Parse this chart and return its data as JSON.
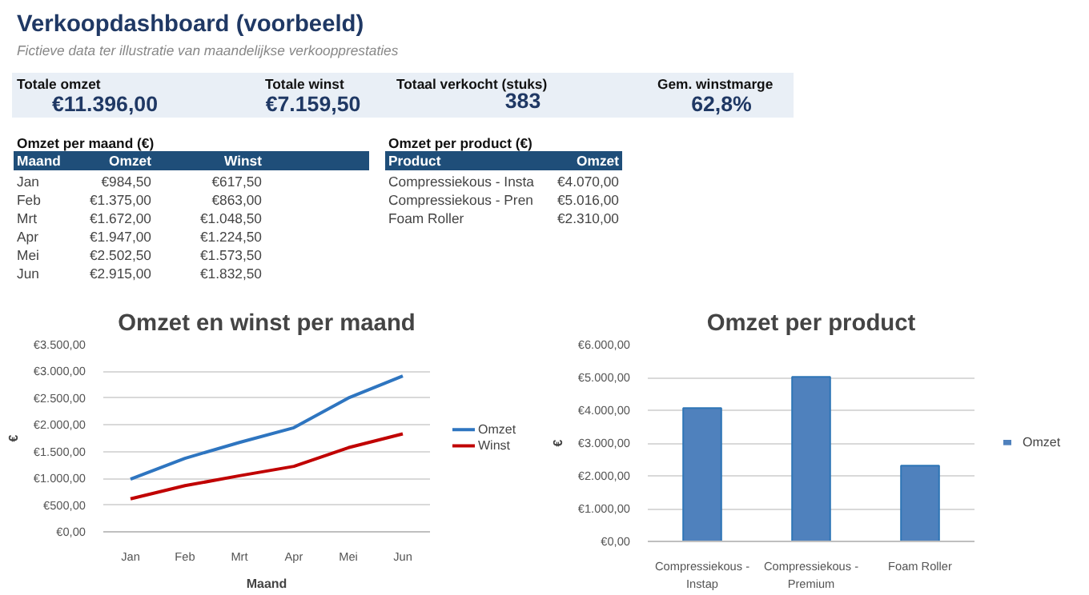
{
  "chart_data": [
    {
      "type": "other",
      "title": "Verkoopdashboard (voorbeeld)",
      "subtitle": "Fictieve data ter illustratie van maandelijkse verkoopprestaties",
      "categories": [
        "Totale omzet",
        "Totale winst",
        "Totaal verkocht (stuks)",
        "Gem. winstmarge"
      ],
      "annotations": [
        "€11.396,00",
        "€7.159,50",
        "383",
        "62,8%"
      ]
    },
    {
      "type": "other",
      "title": "Omzet per maand (€)",
      "categories": [
        "Maand",
        "Omzet",
        "Winst"
      ],
      "annotations": [
        "Jan",
        "€984,50",
        "€617,50",
        "Feb",
        "€1.375,00",
        "€863,00",
        "Mrt",
        "€1.672,00",
        "€1.048,50",
        "Apr",
        "€1.947,00",
        "€1.224,50",
        "Mei",
        "€2.502,50",
        "€1.573,50",
        "Jun",
        "€2.915,00",
        "€1.832,50"
      ]
    },
    {
      "type": "other",
      "title": "Omzet per product (€)",
      "categories": [
        "Product",
        "Omzet"
      ],
      "annotations": [
        "Compressiekous - Insta",
        "€4.070,00",
        "Compressiekous - Pren",
        "€5.016,00",
        "Foam Roller",
        "€2.310,00"
      ]
    },
    {
      "type": "line",
      "title": "Omzet en winst per maand",
      "xlabel": "Maand",
      "ylabel": "€",
      "categories": [
        "Jan",
        "Feb",
        "Mrt",
        "Apr",
        "Mei",
        "Jun"
      ],
      "ylim": [
        0,
        3500
      ],
      "yticks": [
        {
          "value": 0,
          "label": "€0,00"
        },
        {
          "value": 500,
          "label": "€500,00"
        },
        {
          "value": 1000,
          "label": "€1.000,00"
        },
        {
          "value": 1500,
          "label": "€1.500,00"
        },
        {
          "value": 2000,
          "label": "€2.000,00"
        },
        {
          "value": 2500,
          "label": "€2.500,00"
        },
        {
          "value": 3000,
          "label": "€3.000,00"
        },
        {
          "value": 3500,
          "label": "€3.500,00"
        }
      ],
      "grid": "y",
      "legend": "right",
      "line_style": "solid",
      "series": [
        {
          "name": "Omzet",
          "color": "#2e75c0",
          "values": [
            984.5,
            1375,
            1672,
            1947,
            2502.5,
            2915
          ]
        },
        {
          "name": "Winst",
          "color": "#c00000",
          "values": [
            617.5,
            863,
            1048.5,
            1224.5,
            1573.5,
            1832.5
          ]
        }
      ]
    },
    {
      "type": "bar",
      "title": "Omzet per product",
      "ylabel": "€",
      "categories": [
        "Compressiekous - Instap",
        "Compressiekous - Premium",
        "Foam Roller"
      ],
      "ylim": [
        0,
        6000
      ],
      "yticks": [
        {
          "value": 0,
          "label": "€0,00"
        },
        {
          "value": 1000,
          "label": "€1.000,00"
        },
        {
          "value": 2000,
          "label": "€2.000,00"
        },
        {
          "value": 3000,
          "label": "€3.000,00"
        },
        {
          "value": 4000,
          "label": "€4.000,00"
        },
        {
          "value": 5000,
          "label": "€5.000,00"
        },
        {
          "value": 6000,
          "label": "€6.000,00"
        }
      ],
      "grid": "y",
      "legend": "right",
      "series": [
        {
          "name": "Omzet",
          "color": "#4f81bd",
          "values": [
            4070,
            5016,
            2310
          ]
        }
      ]
    }
  ]
}
